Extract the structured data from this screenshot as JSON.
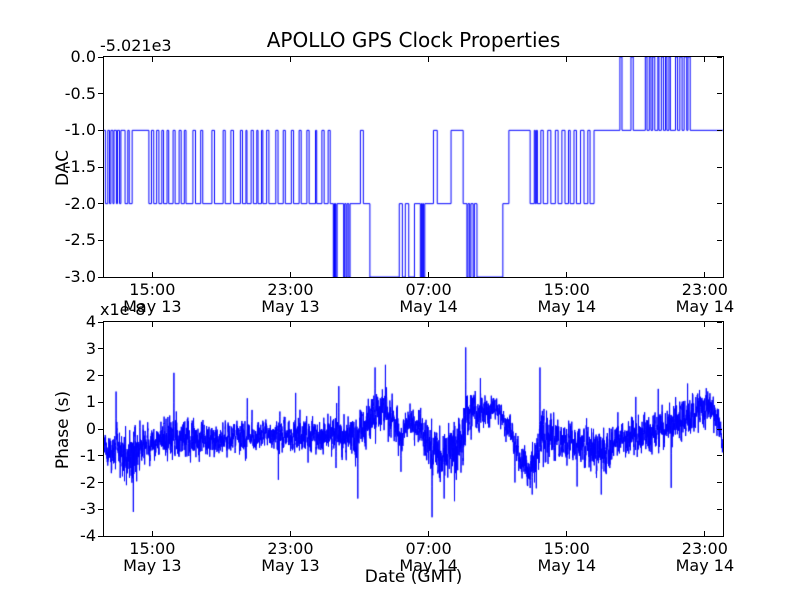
{
  "figure": {
    "title": "APOLLO GPS Clock Properties",
    "xlabel": "Date (GMT)",
    "background": "#ffffff",
    "line_color": "#0000ff",
    "axis_color": "#000000",
    "x_axis": {
      "unit": "hours since May 13 00:00 GMT",
      "range_hours": [
        12.2,
        48.05
      ],
      "tick_hours": [
        15,
        23,
        31,
        39,
        47
      ],
      "tick_labels": [
        {
          "time": "15:00",
          "date": "May 13"
        },
        {
          "time": "23:00",
          "date": "May 13"
        },
        {
          "time": "07:00",
          "date": "May 14"
        },
        {
          "time": "15:00",
          "date": "May 14"
        },
        {
          "time": "23:00",
          "date": "May 14"
        }
      ]
    }
  },
  "chart_data": [
    {
      "type": "line",
      "name": "dac-step-series",
      "ylabel": "DAC",
      "offset_label": "-5.021e3",
      "ylim": [
        -3.0,
        0.0
      ],
      "yticks": [
        0.0,
        -0.5,
        -1.0,
        -1.5,
        -2.0,
        -2.5,
        -3.0
      ],
      "ytick_labels": [
        "0.0",
        "-0.5",
        "-1.0",
        "-1.5",
        "-2.0",
        "-2.5",
        "-3.0"
      ],
      "legend": "none",
      "grid": false,
      "step_points": [
        [
          12.2,
          -1
        ],
        [
          12.28,
          -2
        ],
        [
          12.42,
          -1
        ],
        [
          12.52,
          -2
        ],
        [
          12.6,
          -1
        ],
        [
          12.72,
          -2
        ],
        [
          12.78,
          -1
        ],
        [
          12.92,
          -2
        ],
        [
          12.98,
          -1
        ],
        [
          13.1,
          -2
        ],
        [
          13.18,
          -1
        ],
        [
          13.42,
          -2
        ],
        [
          13.58,
          -1
        ],
        [
          13.66,
          -2
        ],
        [
          13.83,
          -1
        ],
        [
          14.8,
          -2
        ],
        [
          14.95,
          -1
        ],
        [
          15.08,
          -2
        ],
        [
          15.25,
          -1
        ],
        [
          15.38,
          -2
        ],
        [
          15.55,
          -1
        ],
        [
          15.65,
          -2
        ],
        [
          15.85,
          -1
        ],
        [
          15.95,
          -2
        ],
        [
          16.2,
          -1
        ],
        [
          16.32,
          -2
        ],
        [
          16.55,
          -1
        ],
        [
          16.67,
          -2
        ],
        [
          16.85,
          -1
        ],
        [
          16.95,
          -2
        ],
        [
          17.35,
          -1
        ],
        [
          17.5,
          -2
        ],
        [
          17.8,
          -1
        ],
        [
          17.92,
          -2
        ],
        [
          18.45,
          -1
        ],
        [
          18.6,
          -2
        ],
        [
          19.1,
          -1
        ],
        [
          19.22,
          -2
        ],
        [
          19.55,
          -1
        ],
        [
          19.7,
          -2
        ],
        [
          20.1,
          -1
        ],
        [
          20.22,
          -2
        ],
        [
          20.42,
          -1
        ],
        [
          20.48,
          -2
        ],
        [
          20.72,
          -1
        ],
        [
          20.85,
          -2
        ],
        [
          21.05,
          -1
        ],
        [
          21.12,
          -2
        ],
        [
          21.32,
          -1
        ],
        [
          21.4,
          -2
        ],
        [
          21.62,
          -1
        ],
        [
          21.75,
          -2
        ],
        [
          22.15,
          -1
        ],
        [
          22.28,
          -2
        ],
        [
          22.58,
          -1
        ],
        [
          22.7,
          -2
        ],
        [
          23.05,
          -1
        ],
        [
          23.18,
          -2
        ],
        [
          23.5,
          -1
        ],
        [
          23.62,
          -2
        ],
        [
          23.95,
          -1
        ],
        [
          24.08,
          -2
        ],
        [
          24.45,
          -1
        ],
        [
          24.52,
          -2
        ],
        [
          24.82,
          -1
        ],
        [
          24.95,
          -2
        ],
        [
          25.18,
          -1
        ],
        [
          25.3,
          -2
        ],
        [
          25.48,
          -3
        ],
        [
          25.52,
          -2
        ],
        [
          25.55,
          -3
        ],
        [
          25.6,
          -2
        ],
        [
          25.64,
          -3
        ],
        [
          25.7,
          -2
        ],
        [
          26.08,
          -3
        ],
        [
          26.14,
          -2
        ],
        [
          26.22,
          -3
        ],
        [
          26.28,
          -2
        ],
        [
          26.38,
          -3
        ],
        [
          26.45,
          -2
        ],
        [
          27.05,
          -1
        ],
        [
          27.22,
          -2
        ],
        [
          27.6,
          -3
        ],
        [
          29.3,
          -2
        ],
        [
          29.48,
          -3
        ],
        [
          29.65,
          -2
        ],
        [
          29.85,
          -3
        ],
        [
          30.18,
          -2
        ],
        [
          30.52,
          -3
        ],
        [
          30.58,
          -2
        ],
        [
          30.62,
          -3
        ],
        [
          30.66,
          -2
        ],
        [
          30.71,
          -3
        ],
        [
          30.78,
          -2
        ],
        [
          31.28,
          -1
        ],
        [
          31.5,
          -2
        ],
        [
          32.3,
          -1
        ],
        [
          33.0,
          -2
        ],
        [
          33.22,
          -3
        ],
        [
          33.28,
          -2
        ],
        [
          33.38,
          -3
        ],
        [
          33.45,
          -2
        ],
        [
          33.58,
          -3
        ],
        [
          33.65,
          -2
        ],
        [
          33.8,
          -3
        ],
        [
          35.3,
          -2
        ],
        [
          35.65,
          -1
        ],
        [
          36.88,
          -2
        ],
        [
          37.12,
          -1
        ],
        [
          37.18,
          -2
        ],
        [
          37.24,
          -1
        ],
        [
          37.3,
          -2
        ],
        [
          37.5,
          -1
        ],
        [
          37.64,
          -2
        ],
        [
          37.9,
          -1
        ],
        [
          38.08,
          -2
        ],
        [
          38.34,
          -1
        ],
        [
          38.5,
          -2
        ],
        [
          38.72,
          -1
        ],
        [
          38.9,
          -2
        ],
        [
          39.1,
          -1
        ],
        [
          39.2,
          -2
        ],
        [
          39.42,
          -1
        ],
        [
          39.56,
          -2
        ],
        [
          39.8,
          -1
        ],
        [
          40.0,
          -2
        ],
        [
          40.22,
          -1
        ],
        [
          40.35,
          -2
        ],
        [
          40.58,
          -1
        ],
        [
          42.08,
          0
        ],
        [
          42.2,
          -1
        ],
        [
          42.72,
          0
        ],
        [
          42.85,
          -1
        ],
        [
          43.55,
          0
        ],
        [
          43.65,
          -1
        ],
        [
          43.78,
          0
        ],
        [
          43.88,
          -1
        ],
        [
          43.98,
          0
        ],
        [
          44.1,
          -1
        ],
        [
          44.28,
          0
        ],
        [
          44.34,
          -1
        ],
        [
          44.48,
          0
        ],
        [
          44.6,
          -1
        ],
        [
          44.72,
          0
        ],
        [
          44.8,
          -1
        ],
        [
          44.92,
          0
        ],
        [
          45.0,
          -1
        ],
        [
          45.3,
          0
        ],
        [
          45.42,
          -1
        ],
        [
          45.55,
          0
        ],
        [
          45.68,
          -1
        ],
        [
          45.8,
          0
        ],
        [
          45.95,
          -1
        ],
        [
          46.02,
          0
        ],
        [
          46.15,
          -1
        ],
        [
          48.05,
          -1
        ]
      ]
    },
    {
      "type": "line",
      "name": "phase-noise-series",
      "ylabel": "Phase (s)",
      "multiplier_label": "x1e-8",
      "ylim": [
        -4,
        4
      ],
      "yticks": [
        4,
        3,
        2,
        1,
        0,
        -1,
        -2,
        -3,
        -4
      ],
      "ytick_labels": [
        "4",
        "3",
        "2",
        "1",
        "0",
        "-1",
        "-2",
        "-3",
        "-4"
      ],
      "legend": "none",
      "grid": false,
      "noise": {
        "seed": 987654321,
        "samples_per_hour": 160,
        "ar_coeff": 0.55,
        "gauss_gain": 0.8
      },
      "mean_amp_anchors": [
        [
          12.2,
          -0.7,
          0.5
        ],
        [
          13.0,
          -0.85,
          0.6
        ],
        [
          13.9,
          -1.0,
          0.9
        ],
        [
          14.6,
          -0.55,
          0.6
        ],
        [
          15.4,
          -0.45,
          0.6
        ],
        [
          16.2,
          -0.35,
          0.8
        ],
        [
          17.0,
          -0.4,
          0.6
        ],
        [
          18.0,
          -0.3,
          0.55
        ],
        [
          19.0,
          -0.35,
          0.5
        ],
        [
          20.0,
          -0.3,
          0.55
        ],
        [
          21.0,
          -0.3,
          0.5
        ],
        [
          22.0,
          -0.3,
          0.5
        ],
        [
          23.0,
          -0.3,
          0.55
        ],
        [
          23.8,
          -0.2,
          0.6
        ],
        [
          24.6,
          -0.25,
          0.5
        ],
        [
          25.4,
          -0.2,
          0.6
        ],
        [
          26.1,
          -0.2,
          0.7
        ],
        [
          26.8,
          -0.3,
          0.7
        ],
        [
          27.4,
          0.2,
          0.7
        ],
        [
          28.0,
          0.6,
          0.8
        ],
        [
          28.6,
          0.7,
          0.8
        ],
        [
          29.1,
          0.2,
          0.6
        ],
        [
          29.4,
          -0.5,
          0.5
        ],
        [
          29.8,
          0.15,
          0.5
        ],
        [
          30.4,
          0.2,
          0.5
        ],
        [
          31.0,
          -0.5,
          0.7
        ],
        [
          31.5,
          -1.1,
          0.9
        ],
        [
          32.1,
          -1.0,
          0.8
        ],
        [
          32.7,
          -0.7,
          0.8
        ],
        [
          33.2,
          0.3,
          0.9
        ],
        [
          33.8,
          0.7,
          0.7
        ],
        [
          34.5,
          0.8,
          0.5
        ],
        [
          35.2,
          0.6,
          0.4
        ],
        [
          35.8,
          -0.3,
          0.5
        ],
        [
          36.3,
          -1.2,
          0.5
        ],
        [
          37.0,
          -1.3,
          0.6
        ],
        [
          37.6,
          -0.3,
          0.9
        ],
        [
          38.2,
          -0.4,
          0.7
        ],
        [
          39.0,
          -0.5,
          0.6
        ],
        [
          39.8,
          -0.55,
          0.65
        ],
        [
          40.6,
          -0.7,
          0.7
        ],
        [
          41.3,
          -0.7,
          0.8
        ],
        [
          42.0,
          -0.45,
          0.6
        ],
        [
          42.8,
          -0.3,
          0.6
        ],
        [
          43.6,
          -0.15,
          0.6
        ],
        [
          44.4,
          0.0,
          0.6
        ],
        [
          45.2,
          0.15,
          0.7
        ],
        [
          45.9,
          0.4,
          0.7
        ],
        [
          46.6,
          0.65,
          0.6
        ],
        [
          47.3,
          0.8,
          0.5
        ],
        [
          47.8,
          0.4,
          0.5
        ],
        [
          48.05,
          -0.6,
          0.3
        ]
      ],
      "spikes": [
        [
          12.9,
          1.4
        ],
        [
          13.5,
          -2.1
        ],
        [
          13.9,
          -3.1
        ],
        [
          16.25,
          2.1
        ],
        [
          20.5,
          1.15
        ],
        [
          22.3,
          -1.9
        ],
        [
          23.3,
          1.35
        ],
        [
          25.8,
          1.6
        ],
        [
          26.9,
          -2.6
        ],
        [
          27.9,
          2.3
        ],
        [
          28.5,
          2.4
        ],
        [
          29.4,
          -1.6
        ],
        [
          31.2,
          -3.3
        ],
        [
          31.9,
          -2.6
        ],
        [
          32.5,
          -2.7
        ],
        [
          33.15,
          3.05
        ],
        [
          34.0,
          1.9
        ],
        [
          36.0,
          -2.0
        ],
        [
          37.0,
          -2.45
        ],
        [
          37.45,
          2.3
        ],
        [
          39.6,
          -2.15
        ],
        [
          41.0,
          -2.45
        ],
        [
          43.0,
          1.2
        ],
        [
          44.3,
          1.5
        ],
        [
          45.05,
          -2.2
        ],
        [
          46.0,
          1.7
        ]
      ]
    }
  ]
}
